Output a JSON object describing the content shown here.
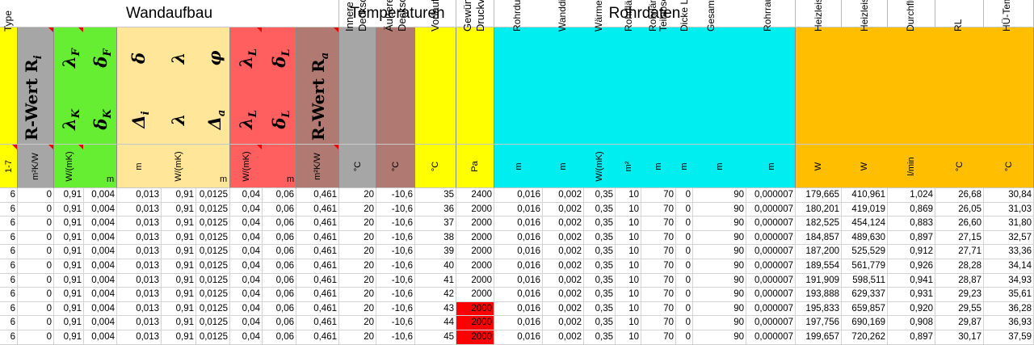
{
  "groups": {
    "wandaufbau": "Wandaufbau",
    "temperaturen": "Temperaturen",
    "rohrdaten": "Rohrdaten"
  },
  "headers": {
    "type": "Type",
    "type_unit": "1-7",
    "r_wert_i": "R-Wert R",
    "r_wert_i_sub": "i",
    "r_wert_i_unit": "m²K/W",
    "lambda_f": "λ",
    "lambda_f_sub": "F",
    "delta_f": "δ",
    "delta_f_sub": "F",
    "lambda_k": "λ",
    "lambda_k_sub": "K",
    "delta_k": "δ",
    "delta_k_sub": "K",
    "green_unit_1": "W/(mK)",
    "green_unit_2": "m",
    "delta_top": "δ",
    "lambda_top": "λ",
    "phi_top": "φ",
    "delta_i": "Δ",
    "delta_i_sub": "i",
    "lambda_mid": "λ",
    "delta_a": "Δ",
    "delta_a_sub": "a",
    "yellow_unit_1": "m",
    "yellow_unit_2": "W/(mK)",
    "yellow_unit_3": "m",
    "lambda_l_top": "λ",
    "lambda_l_top_sub": "L",
    "delta_l_top": "δ",
    "delta_l_top_sub": "L",
    "lambda_l": "λ",
    "lambda_l_sub": "L",
    "delta_l": "δ",
    "delta_l_sub": "L",
    "red_unit_1": "W/(mK)",
    "red_unit_2": "m",
    "r_wert_a": "R-Wert R",
    "r_wert_a_sub": "a",
    "r_wert_a_unit": "m²K/W",
    "innere_1": "Innere",
    "innere_2": "Deckschicht",
    "innere_unit": "°C",
    "aeussere_1": "Äußere",
    "aeussere_2": "Deckschicht",
    "aeussere_unit": "°C",
    "vorlauf": "Vorlauftemperatur",
    "vorlauf_unit": "°C",
    "druck_1": "Gewünschter",
    "druck_2": "Druckverlust HK",
    "druck_unit": "Pa",
    "rohrdurchmesser": "Rohrdurchmesser",
    "rohrdurchmesser_unit": "m",
    "wanddicke": "Wanddicke",
    "wanddicke_unit": "m",
    "waermeleit": "Wärmeleitfähigkeit",
    "waermeleit_unit": "W/(mK)",
    "rohrflaeche": "Rohrfläche",
    "rohrflaeche_unit": "m²",
    "rohrlaenge_1": "Rohrlänge",
    "rohrlaenge_2": "Teilabschnitt",
    "rohrlaenge_unit": "m",
    "luftspalt": "Dicke Luftspalt",
    "luftspalt_unit": "m",
    "gesamtrohr": "Gesamtrohrlänge HK",
    "gesamtrohr_unit": "m",
    "rohrrau": "Rohrrauigkeit",
    "rohrrau_unit": "m",
    "heiz_a": "Heizleistung A",
    "heiz_a_unit": "W",
    "heiz_i": "Heizleistung I",
    "heiz_i_unit": "W",
    "durchfluss": "Durchfluss Heizkreis",
    "durchfluss_unit": "l/min",
    "rl": "RL",
    "rl_unit": "°C",
    "hue_temp": "HÜ-Temp",
    "hue_temp_unit": "°C"
  },
  "rows": [
    [
      "6",
      "0",
      "0,91",
      "0,004",
      "0,013",
      "0,91",
      "0,0125",
      "0,04",
      "0,06",
      "0,461",
      "20",
      "-10,6",
      "35",
      "2400",
      "0,016",
      "0,002",
      "0,35",
      "10",
      "70",
      "0",
      "90",
      "0,000007",
      "179,665",
      "410,961",
      "1,024",
      "26,68",
      "30,84"
    ],
    [
      "6",
      "0",
      "0,91",
      "0,004",
      "0,013",
      "0,91",
      "0,0125",
      "0,04",
      "0,06",
      "0,461",
      "20",
      "-10,6",
      "36",
      "2000",
      "0,016",
      "0,002",
      "0,35",
      "10",
      "70",
      "0",
      "90",
      "0,000007",
      "180,201",
      "419,019",
      "0,869",
      "26,05",
      "31,03"
    ],
    [
      "6",
      "0",
      "0,91",
      "0,004",
      "0,013",
      "0,91",
      "0,0125",
      "0,04",
      "0,06",
      "0,461",
      "20",
      "-10,6",
      "37",
      "2000",
      "0,016",
      "0,002",
      "0,35",
      "10",
      "70",
      "0",
      "90",
      "0,000007",
      "182,525",
      "454,124",
      "0,883",
      "26,60",
      "31,80"
    ],
    [
      "6",
      "0",
      "0,91",
      "0,004",
      "0,013",
      "0,91",
      "0,0125",
      "0,04",
      "0,06",
      "0,461",
      "20",
      "-10,6",
      "38",
      "2000",
      "0,016",
      "0,002",
      "0,35",
      "10",
      "70",
      "0",
      "90",
      "0,000007",
      "184,857",
      "489,630",
      "0,897",
      "27,15",
      "32,57"
    ],
    [
      "6",
      "0",
      "0,91",
      "0,004",
      "0,013",
      "0,91",
      "0,0125",
      "0,04",
      "0,06",
      "0,461",
      "20",
      "-10,6",
      "39",
      "2000",
      "0,016",
      "0,002",
      "0,35",
      "10",
      "70",
      "0",
      "90",
      "0,000007",
      "187,200",
      "525,529",
      "0,912",
      "27,71",
      "33,36"
    ],
    [
      "6",
      "0",
      "0,91",
      "0,004",
      "0,013",
      "0,91",
      "0,0125",
      "0,04",
      "0,06",
      "0,461",
      "20",
      "-10,6",
      "40",
      "2000",
      "0,016",
      "0,002",
      "0,35",
      "10",
      "70",
      "0",
      "90",
      "0,000007",
      "189,554",
      "561,779",
      "0,926",
      "28,28",
      "34,14"
    ],
    [
      "6",
      "0",
      "0,91",
      "0,004",
      "0,013",
      "0,91",
      "0,0125",
      "0,04",
      "0,06",
      "0,461",
      "20",
      "-10,6",
      "41",
      "2000",
      "0,016",
      "0,002",
      "0,35",
      "10",
      "70",
      "0",
      "90",
      "0,000007",
      "191,909",
      "598,511",
      "0,941",
      "28,87",
      "34,93"
    ],
    [
      "6",
      "0",
      "0,91",
      "0,004",
      "0,013",
      "0,91",
      "0,0125",
      "0,04",
      "0,06",
      "0,461",
      "20",
      "-10,6",
      "42",
      "2000",
      "0,016",
      "0,002",
      "0,35",
      "10",
      "70",
      "0",
      "90",
      "0,000007",
      "193,888",
      "629,337",
      "0,931",
      "29,23",
      "35,61"
    ],
    [
      "6",
      "0",
      "0,91",
      "0,004",
      "0,013",
      "0,91",
      "0,0125",
      "0,04",
      "0,06",
      "0,461",
      "20",
      "-10,6",
      "43",
      "2000",
      "0,016",
      "0,002",
      "0,35",
      "10",
      "70",
      "0",
      "90",
      "0,000007",
      "195,833",
      "659,857",
      "0,920",
      "29,55",
      "36,28"
    ],
    [
      "6",
      "0",
      "0,91",
      "0,004",
      "0,013",
      "0,91",
      "0,0125",
      "0,04",
      "0,06",
      "0,461",
      "20",
      "-10,6",
      "44",
      "2000",
      "0,016",
      "0,002",
      "0,35",
      "10",
      "70",
      "0",
      "90",
      "0,000007",
      "197,756",
      "690,169",
      "0,908",
      "29,87",
      "36,93"
    ],
    [
      "6",
      "0",
      "0,91",
      "0,004",
      "0,013",
      "0,91",
      "0,0125",
      "0,04",
      "0,06",
      "0,461",
      "20",
      "-10,6",
      "45",
      "2000",
      "0,016",
      "0,002",
      "0,35",
      "10",
      "70",
      "0",
      "90",
      "0,000007",
      "199,657",
      "720,262",
      "0,897",
      "30,17",
      "37,59"
    ]
  ],
  "highlighted_cells": [
    [
      8,
      13
    ],
    [
      9,
      13
    ],
    [
      10,
      13
    ]
  ],
  "colors": {
    "yellow": "#ffff00",
    "gray": "#a6a6a6",
    "green": "#66ee33",
    "light_yellow": "#ffe699",
    "red": "#ff5f5f",
    "brown": "#b07a72",
    "cyan": "#00eef0",
    "orange": "#ffbf00",
    "highlight": "#ff0000"
  }
}
